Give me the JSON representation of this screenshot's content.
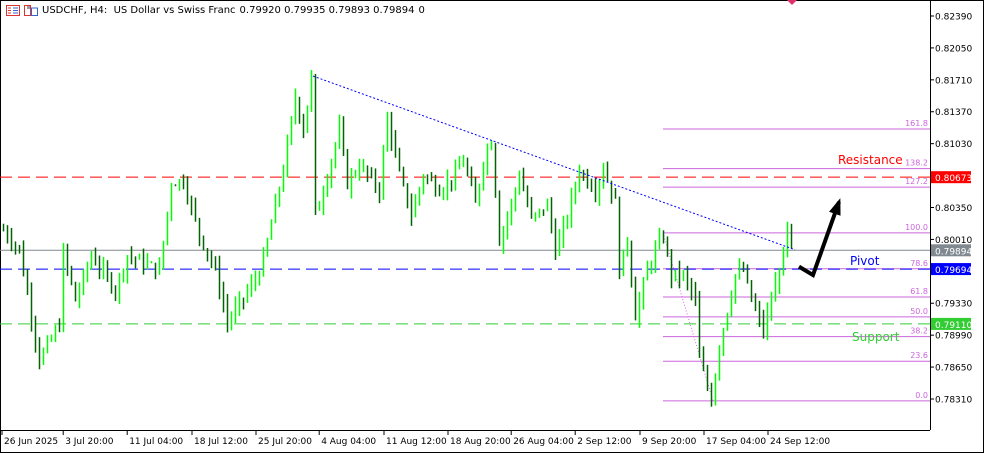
{
  "header": {
    "symbol_title": "USDCHF, H4:  US Dollar vs Swiss Franc",
    "ohlc": "0.79920 0.79935 0.79893 0.79894",
    "volume": "0",
    "icons": [
      "chart-list-icon",
      "symbol-window-icon"
    ]
  },
  "chart_data": {
    "type": "ohlc-bars",
    "symbol": "USDCHF",
    "timeframe": "H4",
    "ylim": [
      0.7806,
      0.8254
    ],
    "y_ticks": [
      "0.82390",
      "0.82050",
      "0.81710",
      "0.81370",
      "0.81030",
      "0.80350",
      "0.80010",
      "0.79330",
      "0.78990",
      "0.78650",
      "0.78310"
    ],
    "x_ticks": [
      {
        "label": "26 Jun 2025",
        "bar": 0
      },
      {
        "label": "3 Jul 20:00",
        "bar": 15.3
      },
      {
        "label": "11 Jul 04:00",
        "bar": 31.3
      },
      {
        "label": "18 Jul 12:00",
        "bar": 47.5
      },
      {
        "label": "25 Jul 20:00",
        "bar": 63.5
      },
      {
        "label": "4 Aug 04:00",
        "bar": 79.3
      },
      {
        "label": "11 Aug 12:00",
        "bar": 95.5
      },
      {
        "label": "18 Aug 20:00",
        "bar": 111.5
      },
      {
        "label": "26 Aug 04:00",
        "bar": 127.3
      },
      {
        "label": "2 Sep 12:00",
        "bar": 143.3
      },
      {
        "label": "9 Sep 20:00",
        "bar": 159.5
      },
      {
        "label": "17 Sep 04:00",
        "bar": 175.5
      },
      {
        "label": "24 Sep 12:00",
        "bar": 191.5
      }
    ],
    "price_path": [
      [
        0,
        0.8011
      ],
      [
        4,
        0.799
      ],
      [
        9,
        0.7873
      ],
      [
        14,
        0.791
      ],
      [
        15,
        0.7987
      ],
      [
        18,
        0.7936
      ],
      [
        22,
        0.7984
      ],
      [
        28,
        0.7947
      ],
      [
        31,
        0.7984
      ],
      [
        39,
        0.7968
      ],
      [
        42,
        0.8061
      ],
      [
        45,
        0.8064
      ],
      [
        49,
        0.8006
      ],
      [
        53,
        0.7968
      ],
      [
        56,
        0.7913
      ],
      [
        63,
        0.7958
      ],
      [
        65,
        0.7979
      ],
      [
        68,
        0.8038
      ],
      [
        70,
        0.8075
      ],
      [
        73,
        0.8152
      ],
      [
        75,
        0.8118
      ],
      [
        77,
        0.8173
      ],
      [
        78,
        0.8027
      ],
      [
        80,
        0.8054
      ],
      [
        84,
        0.8118
      ],
      [
        86,
        0.8061
      ],
      [
        89,
        0.808
      ],
      [
        94,
        0.8054
      ],
      [
        96,
        0.8131
      ],
      [
        99,
        0.807
      ],
      [
        102,
        0.8027
      ],
      [
        105,
        0.807
      ],
      [
        109,
        0.8054
      ],
      [
        113,
        0.807
      ],
      [
        115,
        0.8086
      ],
      [
        118,
        0.8038
      ],
      [
        120,
        0.8086
      ],
      [
        122,
        0.8107
      ],
      [
        124,
        0.8
      ],
      [
        127,
        0.8038
      ],
      [
        129,
        0.807
      ],
      [
        132,
        0.8022
      ],
      [
        136,
        0.8038
      ],
      [
        138,
        0.799
      ],
      [
        140,
        0.8011
      ],
      [
        144,
        0.8075
      ],
      [
        148,
        0.8054
      ],
      [
        150,
        0.8077
      ],
      [
        153,
        0.804
      ],
      [
        154,
        0.7968
      ],
      [
        156,
        0.8
      ],
      [
        158,
        0.792
      ],
      [
        161,
        0.7968
      ],
      [
        163,
        0.799
      ],
      [
        165,
        0.8004
      ],
      [
        167,
        0.7963
      ],
      [
        170,
        0.7963
      ],
      [
        173,
        0.7936
      ],
      [
        174,
        0.7873
      ],
      [
        177,
        0.783
      ],
      [
        179,
        0.7889
      ],
      [
        183,
        0.7963
      ],
      [
        185,
        0.7968
      ],
      [
        187,
        0.7936
      ],
      [
        190,
        0.7904
      ],
      [
        193,
        0.7952
      ],
      [
        195,
        0.7984
      ],
      [
        196,
        0.8013
      ],
      [
        197,
        0.7989
      ]
    ],
    "colors": {
      "bull": "#00ff00",
      "bear": "#006400"
    },
    "levels": [
      {
        "name": "Resistance",
        "price": 0.80673,
        "price_label": "0.80673",
        "color": "#ff0000",
        "style": "dashed"
      },
      {
        "name": "Pivot",
        "price": 0.79694,
        "price_label": "0.79694",
        "color": "#0000ff",
        "style": "dashed"
      },
      {
        "name": "Support",
        "price": 0.7911,
        "price_label": "0.79110",
        "color": "#32cd32",
        "style": "dashed"
      }
    ],
    "current_price": {
      "price": 0.79894,
      "label": "0.79894",
      "color": "#808890"
    },
    "trendline": {
      "from": [
        77.5,
        0.8175
      ],
      "to": [
        198,
        0.799
      ],
      "color": "#0000ff",
      "style": "dotted"
    },
    "fibonacci": {
      "from_bar": 165,
      "to_bar": 177.5,
      "high": 0.8008,
      "low": 0.7829,
      "color": "#cc66dd",
      "levels": [
        "0.0",
        "23.6",
        "38.2",
        "50.0",
        "61.8",
        "78.6",
        "100.0",
        "127.2",
        "138.2",
        "161.8"
      ]
    },
    "arrow": {
      "points": [
        [
          199,
          0.7972
        ],
        [
          202.5,
          0.7963
        ],
        [
          209,
          0.8041
        ]
      ],
      "color": "#000000"
    }
  }
}
